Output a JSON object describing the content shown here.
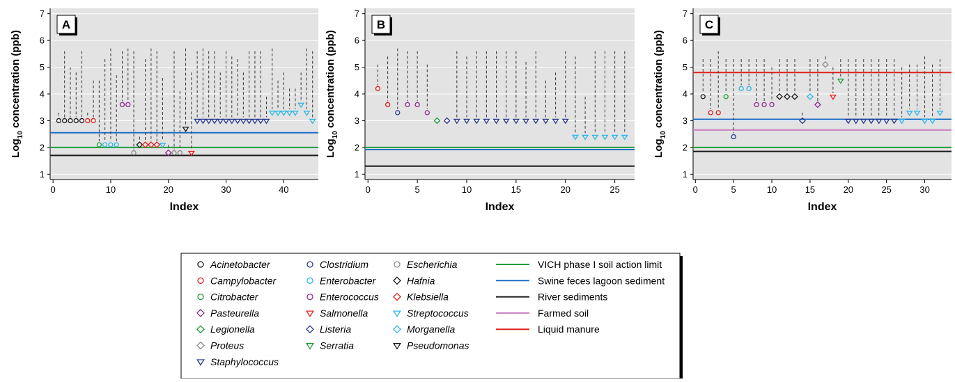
{
  "colors": {
    "plot_bg": "#e3e3e3",
    "gridline": "#ffffff",
    "drop_line": "#333333"
  },
  "legend": {
    "organisms": [
      {
        "name": "Acinetobacter",
        "marker": "circle",
        "color": "#1a1a1a"
      },
      {
        "name": "Campylobacter",
        "marker": "circle",
        "color": "#e0201b"
      },
      {
        "name": "Citrobacter",
        "marker": "circle",
        "color": "#1e9e3a"
      },
      {
        "name": "Pasteurella",
        "marker": "diamond",
        "color": "#8e2a91"
      },
      {
        "name": "Legionella",
        "marker": "diamond",
        "color": "#1e9e3a"
      },
      {
        "name": "Proteus",
        "marker": "diamond",
        "color": "#8c8c8c"
      },
      {
        "name": "Staphylococcus",
        "marker": "triangle-down",
        "color": "#2b3990"
      },
      {
        "name": "Clostridium",
        "marker": "circle",
        "color": "#2b3990"
      },
      {
        "name": "Enterobacter",
        "marker": "circle",
        "color": "#29b6e5"
      },
      {
        "name": "Enterococcus",
        "marker": "circle",
        "color": "#8e2a91"
      },
      {
        "name": "Salmonella",
        "marker": "triangle-down",
        "color": "#e0201b"
      },
      {
        "name": "Listeria",
        "marker": "diamond",
        "color": "#2b3990"
      },
      {
        "name": "Serratia",
        "marker": "triangle-down",
        "color": "#1e9e3a"
      },
      {
        "name": "Escherichia",
        "marker": "circle",
        "color": "#8c8c8c"
      },
      {
        "name": "Hafnia",
        "marker": "diamond",
        "color": "#1a1a1a"
      },
      {
        "name": "Klebsiella",
        "marker": "diamond",
        "color": "#e0201b"
      },
      {
        "name": "Streptococcus",
        "marker": "triangle-down",
        "color": "#29b6e5"
      },
      {
        "name": "Morganella",
        "marker": "diamond",
        "color": "#29b6e5"
      },
      {
        "name": "Pseudomonas",
        "marker": "triangle-down",
        "color": "#1a1a1a"
      }
    ],
    "reference_lines": [
      {
        "name": "VICH phase I soil action limit",
        "color": "#1e9e3a"
      },
      {
        "name": "Swine feces lagoon sediment",
        "color": "#1f6fc5"
      },
      {
        "name": "River sediments",
        "color": "#1a1a1a"
      },
      {
        "name": "Farmed soil",
        "color": "#c77fc0"
      },
      {
        "name": "Liquid manure",
        "color": "#e0201b"
      }
    ]
  },
  "chart_data": [
    {
      "type": "scatter",
      "panel_label": "A",
      "xlabel": "Index",
      "ylabel_main": "Log",
      "ylabel_sub": "10",
      "ylabel_rest": " concentration (ppb)",
      "xlim": [
        -0.5,
        46
      ],
      "ylim": [
        0.8,
        7.2
      ],
      "xticks": [
        0,
        10,
        20,
        30,
        40
      ],
      "yticks": [
        1,
        2,
        3,
        4,
        5,
        6,
        7
      ],
      "hlines": [
        {
          "name": "VICH phase I soil action limit",
          "y": 2.0
        },
        {
          "name": "Swine feces lagoon sediment",
          "y": 2.55
        },
        {
          "name": "River sediments",
          "y": 1.7
        }
      ],
      "points": [
        {
          "x": 1,
          "y": 3.0,
          "top": 3.3,
          "org": "Acinetobacter"
        },
        {
          "x": 2,
          "y": 3.0,
          "top": 5.6,
          "org": "Acinetobacter"
        },
        {
          "x": 3,
          "y": 3.0,
          "top": 5.0,
          "org": "Acinetobacter"
        },
        {
          "x": 4,
          "y": 3.0,
          "top": 4.8,
          "org": "Acinetobacter"
        },
        {
          "x": 5,
          "y": 3.0,
          "top": 5.6,
          "org": "Acinetobacter"
        },
        {
          "x": 6,
          "y": 3.0,
          "top": 3.3,
          "org": "Campylobacter"
        },
        {
          "x": 7,
          "y": 3.0,
          "top": 4.5,
          "org": "Campylobacter"
        },
        {
          "x": 8,
          "y": 2.1,
          "top": 4.5,
          "org": "Citrobacter"
        },
        {
          "x": 9,
          "y": 2.1,
          "top": 5.3,
          "org": "Enterobacter"
        },
        {
          "x": 10,
          "y": 2.1,
          "top": 5.7,
          "org": "Enterobacter"
        },
        {
          "x": 11,
          "y": 2.1,
          "top": 4.7,
          "org": "Enterobacter"
        },
        {
          "x": 12,
          "y": 3.6,
          "top": 5.6,
          "org": "Enterococcus"
        },
        {
          "x": 13,
          "y": 3.6,
          "top": 5.7,
          "org": "Enterococcus"
        },
        {
          "x": 14,
          "y": 1.8,
          "top": 5.6,
          "org": "Escherichia"
        },
        {
          "x": 15,
          "y": 2.1,
          "top": 2.4,
          "org": "Hafnia"
        },
        {
          "x": 16,
          "y": 2.1,
          "top": 5.3,
          "org": "Klebsiella"
        },
        {
          "x": 17,
          "y": 2.1,
          "top": 5.7,
          "org": "Klebsiella"
        },
        {
          "x": 18,
          "y": 2.1,
          "top": 5.6,
          "org": "Klebsiella"
        },
        {
          "x": 19,
          "y": 2.1,
          "top": 4.6,
          "org": "Streptococcus"
        },
        {
          "x": 20,
          "y": 1.8,
          "top": 2.1,
          "org": "Pasteurella"
        },
        {
          "x": 21,
          "y": 1.8,
          "top": 5.6,
          "org": "Escherichia"
        },
        {
          "x": 22,
          "y": 1.8,
          "top": 4.1,
          "org": "Escherichia"
        },
        {
          "x": 23,
          "y": 2.7,
          "top": 5.7,
          "org": "Pseudomonas"
        },
        {
          "x": 24,
          "y": 1.8,
          "top": 4.8,
          "org": "Salmonella"
        },
        {
          "x": 25,
          "y": 3.0,
          "top": 5.6,
          "org": "Staphylococcus"
        },
        {
          "x": 26,
          "y": 3.0,
          "top": 5.7,
          "org": "Staphylococcus"
        },
        {
          "x": 27,
          "y": 3.0,
          "top": 5.6,
          "org": "Staphylococcus"
        },
        {
          "x": 28,
          "y": 3.0,
          "top": 5.6,
          "org": "Staphylococcus"
        },
        {
          "x": 29,
          "y": 3.0,
          "top": 4.8,
          "org": "Staphylococcus"
        },
        {
          "x": 30,
          "y": 3.0,
          "top": 5.6,
          "org": "Staphylococcus"
        },
        {
          "x": 31,
          "y": 3.0,
          "top": 5.4,
          "org": "Staphylococcus"
        },
        {
          "x": 32,
          "y": 3.0,
          "top": 5.3,
          "org": "Staphylococcus"
        },
        {
          "x": 33,
          "y": 3.0,
          "top": 4.8,
          "org": "Staphylococcus"
        },
        {
          "x": 34,
          "y": 3.0,
          "top": 5.6,
          "org": "Staphylococcus"
        },
        {
          "x": 35,
          "y": 3.0,
          "top": 5.6,
          "org": "Staphylococcus"
        },
        {
          "x": 36,
          "y": 3.0,
          "top": 5.6,
          "org": "Staphylococcus"
        },
        {
          "x": 37,
          "y": 3.0,
          "top": 3.9,
          "org": "Staphylococcus"
        },
        {
          "x": 38,
          "y": 3.3,
          "top": 5.7,
          "org": "Streptococcus"
        },
        {
          "x": 39,
          "y": 3.3,
          "top": 4.5,
          "org": "Streptococcus"
        },
        {
          "x": 40,
          "y": 3.3,
          "top": 4.8,
          "org": "Streptococcus"
        },
        {
          "x": 41,
          "y": 3.3,
          "top": 4.2,
          "org": "Streptococcus"
        },
        {
          "x": 42,
          "y": 3.3,
          "top": 4.2,
          "org": "Streptococcus"
        },
        {
          "x": 43,
          "y": 3.6,
          "top": 4.8,
          "org": "Streptococcus"
        },
        {
          "x": 44,
          "y": 3.3,
          "top": 5.7,
          "org": "Streptococcus"
        },
        {
          "x": 45,
          "y": 3.0,
          "top": 5.6,
          "org": "Streptococcus"
        }
      ]
    },
    {
      "type": "scatter",
      "panel_label": "B",
      "xlabel": "Index",
      "xlim": [
        -0.3,
        27
      ],
      "ylim": [
        0.8,
        7.2
      ],
      "xticks": [
        0,
        5,
        10,
        15,
        20,
        25
      ],
      "yticks": [
        1,
        2,
        3,
        4,
        5,
        6,
        7
      ],
      "hlines": [
        {
          "name": "VICH phase I soil action limit",
          "y": 2.0
        },
        {
          "name": "Swine feces lagoon sediment",
          "y": 1.92
        },
        {
          "name": "River sediments",
          "y": 1.3
        }
      ],
      "points": [
        {
          "x": 1,
          "y": 4.2,
          "top": 5.1,
          "org": "Campylobacter"
        },
        {
          "x": 2,
          "y": 3.6,
          "top": 5.4,
          "org": "Campylobacter"
        },
        {
          "x": 3,
          "y": 3.3,
          "top": 5.7,
          "org": "Clostridium"
        },
        {
          "x": 4,
          "y": 3.6,
          "top": 5.6,
          "org": "Enterococcus"
        },
        {
          "x": 5,
          "y": 3.6,
          "top": 5.6,
          "org": "Enterococcus"
        },
        {
          "x": 6,
          "y": 3.3,
          "top": 5.1,
          "org": "Enterococcus"
        },
        {
          "x": 7,
          "y": 3.0,
          "top": 3.0,
          "org": "Legionella"
        },
        {
          "x": 8,
          "y": 3.0,
          "top": 3.0,
          "org": "Listeria"
        },
        {
          "x": 9,
          "y": 3.0,
          "top": 5.6,
          "org": "Staphylococcus"
        },
        {
          "x": 10,
          "y": 3.0,
          "top": 5.4,
          "org": "Staphylococcus"
        },
        {
          "x": 11,
          "y": 3.0,
          "top": 5.6,
          "org": "Staphylococcus"
        },
        {
          "x": 12,
          "y": 3.0,
          "top": 5.6,
          "org": "Staphylococcus"
        },
        {
          "x": 13,
          "y": 3.0,
          "top": 5.6,
          "org": "Staphylococcus"
        },
        {
          "x": 14,
          "y": 3.0,
          "top": 5.6,
          "org": "Staphylococcus"
        },
        {
          "x": 15,
          "y": 3.0,
          "top": 5.6,
          "org": "Staphylococcus"
        },
        {
          "x": 16,
          "y": 3.0,
          "top": 5.2,
          "org": "Staphylococcus"
        },
        {
          "x": 17,
          "y": 3.0,
          "top": 5.6,
          "org": "Staphylococcus"
        },
        {
          "x": 18,
          "y": 3.0,
          "top": 4.5,
          "org": "Staphylococcus"
        },
        {
          "x": 19,
          "y": 3.0,
          "top": 4.8,
          "org": "Staphylococcus"
        },
        {
          "x": 20,
          "y": 3.0,
          "top": 5.6,
          "org": "Staphylococcus"
        },
        {
          "x": 21,
          "y": 2.4,
          "top": 5.4,
          "org": "Streptococcus"
        },
        {
          "x": 22,
          "y": 2.4,
          "top": 3.9,
          "org": "Streptococcus"
        },
        {
          "x": 23,
          "y": 2.4,
          "top": 5.6,
          "org": "Streptococcus"
        },
        {
          "x": 24,
          "y": 2.4,
          "top": 5.6,
          "org": "Streptococcus"
        },
        {
          "x": 25,
          "y": 2.4,
          "top": 5.6,
          "org": "Streptococcus"
        },
        {
          "x": 26,
          "y": 2.4,
          "top": 5.6,
          "org": "Streptococcus"
        }
      ]
    },
    {
      "type": "scatter",
      "panel_label": "C",
      "xlabel": "Index",
      "xlim": [
        -0.3,
        33.5
      ],
      "ylim": [
        0.8,
        7.2
      ],
      "xticks": [
        0,
        5,
        10,
        15,
        20,
        25,
        30
      ],
      "yticks": [
        1,
        2,
        3,
        4,
        5,
        6,
        7
      ],
      "hlines": [
        {
          "name": "VICH phase I soil action limit",
          "y": 2.0
        },
        {
          "name": "Swine feces lagoon sediment",
          "y": 3.05
        },
        {
          "name": "River sediments",
          "y": 1.85
        },
        {
          "name": "Farmed soil",
          "y": 2.65
        },
        {
          "name": "Liquid manure",
          "y": 4.8
        }
      ],
      "points": [
        {
          "x": 1,
          "y": 3.9,
          "top": 5.3,
          "org": "Acinetobacter"
        },
        {
          "x": 2,
          "y": 3.3,
          "top": 5.3,
          "org": "Campylobacter"
        },
        {
          "x": 3,
          "y": 3.3,
          "top": 5.6,
          "org": "Campylobacter"
        },
        {
          "x": 4,
          "y": 3.9,
          "top": 5.3,
          "org": "Citrobacter"
        },
        {
          "x": 5,
          "y": 2.4,
          "top": 5.3,
          "org": "Clostridium"
        },
        {
          "x": 6,
          "y": 4.2,
          "top": 5.3,
          "org": "Enterobacter"
        },
        {
          "x": 7,
          "y": 4.2,
          "top": 5.3,
          "org": "Enterobacter"
        },
        {
          "x": 8,
          "y": 3.6,
          "top": 5.3,
          "org": "Enterococcus"
        },
        {
          "x": 9,
          "y": 3.6,
          "top": 5.3,
          "org": "Enterococcus"
        },
        {
          "x": 10,
          "y": 3.6,
          "top": 5.0,
          "org": "Enterococcus"
        },
        {
          "x": 11,
          "y": 3.9,
          "top": 5.3,
          "org": "Hafnia"
        },
        {
          "x": 12,
          "y": 3.9,
          "top": 5.3,
          "org": "Hafnia"
        },
        {
          "x": 13,
          "y": 3.9,
          "top": 5.3,
          "org": "Hafnia"
        },
        {
          "x": 14,
          "y": 3.0,
          "top": 3.3,
          "org": "Listeria"
        },
        {
          "x": 15,
          "y": 3.9,
          "top": 5.3,
          "org": "Morganella"
        },
        {
          "x": 16,
          "y": 3.6,
          "top": 5.3,
          "org": "Pasteurella"
        },
        {
          "x": 17,
          "y": 5.1,
          "top": 5.4,
          "org": "Proteus"
        },
        {
          "x": 18,
          "y": 3.9,
          "top": 5.0,
          "org": "Salmonella"
        },
        {
          "x": 19,
          "y": 4.5,
          "top": 5.3,
          "org": "Serratia"
        },
        {
          "x": 20,
          "y": 3.0,
          "top": 5.3,
          "org": "Staphylococcus"
        },
        {
          "x": 21,
          "y": 3.0,
          "top": 5.3,
          "org": "Staphylococcus"
        },
        {
          "x": 22,
          "y": 3.0,
          "top": 5.3,
          "org": "Staphylococcus"
        },
        {
          "x": 23,
          "y": 3.0,
          "top": 5.3,
          "org": "Staphylococcus"
        },
        {
          "x": 24,
          "y": 3.0,
          "top": 5.3,
          "org": "Staphylococcus"
        },
        {
          "x": 25,
          "y": 3.0,
          "top": 5.3,
          "org": "Staphylococcus"
        },
        {
          "x": 26,
          "y": 3.0,
          "top": 5.3,
          "org": "Staphylococcus"
        },
        {
          "x": 27,
          "y": 3.0,
          "top": 5.0,
          "org": "Streptococcus"
        },
        {
          "x": 28,
          "y": 3.3,
          "top": 5.1,
          "org": "Streptococcus"
        },
        {
          "x": 29,
          "y": 3.3,
          "top": 5.1,
          "org": "Streptococcus"
        },
        {
          "x": 30,
          "y": 3.0,
          "top": 5.4,
          "org": "Streptococcus"
        },
        {
          "x": 31,
          "y": 3.0,
          "top": 5.1,
          "org": "Streptococcus"
        },
        {
          "x": 32,
          "y": 3.3,
          "top": 5.3,
          "org": "Streptococcus"
        }
      ]
    }
  ]
}
